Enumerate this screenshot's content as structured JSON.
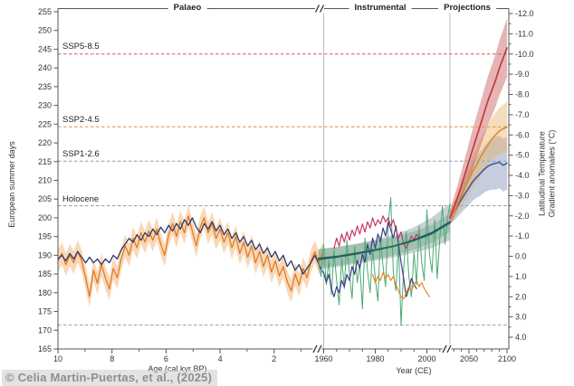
{
  "watermark": "© Celia Martin-Puertas, et al., (2025)",
  "chart_data": {
    "type": "line",
    "title": "",
    "panels": [
      {
        "id": "palaeo",
        "label": "Palaeo"
      },
      {
        "id": "instrumental",
        "label": "Instrumental"
      },
      {
        "id": "projections",
        "label": "Projections"
      }
    ],
    "axes": {
      "left": {
        "label": "European summer days",
        "min": 165,
        "max": 255,
        "step": 5
      },
      "right": {
        "label_line1": "Latitudinal Temperature",
        "label_line2": "Gradient anomalies (°C)",
        "min": -12.0,
        "max": 4.0,
        "step": 1.0,
        "minor_step": 0.5,
        "inverted": true
      },
      "x_palaeo": {
        "label": "Age (cal kyr BP)",
        "ticks": [
          10,
          8,
          6,
          4,
          2
        ],
        "minor": [
          9,
          7,
          5,
          3,
          1
        ]
      },
      "x_years": {
        "label": "Year (CE)",
        "instrumental_ticks": [
          1960,
          1980,
          2000
        ],
        "instrumental_minor": [
          1965,
          1970,
          1975,
          1985,
          1990,
          1995,
          2005
        ],
        "projection_ticks": [
          2050,
          2100
        ],
        "projection_minor": [
          2030,
          2040,
          2060,
          2070,
          2080,
          2090
        ]
      }
    },
    "ref_lines": [
      {
        "label": "SSP5-8.5",
        "ltg": -10.0,
        "days": 243.9,
        "color": "#d45560"
      },
      {
        "label": "SSP2-4.5",
        "ltg": -6.4,
        "days": 223.7,
        "color": "#dfa050"
      },
      {
        "label": "SSP1-2.6",
        "ltg": -4.7,
        "days": 214.4,
        "color": "#97a5b4"
      },
      {
        "label": "Holocene",
        "ltg": -2.5,
        "days": 203.0,
        "color": "#a5a5a5"
      },
      {
        "label": "",
        "ltg": 3.4,
        "days": 171.4,
        "color": "#a5a5a5"
      }
    ],
    "series": [
      {
        "id": "palaeo_orange_reconstruction",
        "panel": "palaeo",
        "units": "days",
        "x0": 10.0,
        "x1": 0.2,
        "color": "#e07b28",
        "width": 1.3,
        "band": {
          "color": "rgba(243,178,109,0.5)",
          "halfwidth": 3
        },
        "values": [
          188.5,
          190.5,
          187.5,
          190,
          188,
          191,
          188.5,
          184,
          179,
          186,
          182.5,
          187.5,
          184,
          181,
          186.5,
          184,
          189,
          192.5,
          190,
          194.5,
          192,
          196,
          193.5,
          196.5,
          194,
          197,
          193,
          190,
          195.5,
          198.5,
          195,
          199,
          196,
          200.5,
          196.5,
          192.5,
          197.5,
          200,
          196,
          198.5,
          194.5,
          197,
          193.5,
          196,
          192,
          195,
          190.5,
          193.5,
          189.5,
          192.5,
          188,
          191,
          187,
          190,
          185.5,
          188.5,
          184.5,
          187,
          183,
          180.5,
          185,
          182,
          186.5,
          184,
          188.5,
          191,
          188,
          190.5
        ]
      },
      {
        "id": "palaeo_navy_simulation",
        "panel": "palaeo",
        "units": "days",
        "x0": 10.0,
        "x1": 0.2,
        "color": "#2c3a72",
        "width": 1.3,
        "values": [
          189,
          190,
          188.5,
          190.5,
          189,
          191,
          189.5,
          188,
          189.5,
          188,
          189,
          187.5,
          189,
          188,
          190,
          189,
          191.5,
          193,
          194.5,
          193.5,
          195.5,
          194,
          196,
          195,
          197,
          195.5,
          197.5,
          196,
          198,
          196.5,
          198.5,
          197,
          199.5,
          198,
          200,
          197.5,
          196,
          198.5,
          197,
          199,
          196.5,
          198,
          195.5,
          197,
          194.5,
          196,
          193.5,
          195,
          192.5,
          194,
          191.5,
          193,
          190.5,
          192,
          189.5,
          191,
          188.5,
          190,
          187,
          188.5,
          186,
          187.5,
          185,
          186.5,
          188,
          190,
          187.5,
          185.5
        ]
      },
      {
        "id": "instr_annual_green",
        "panel": "instrumental",
        "units": "ltg",
        "x0": 1958,
        "x1": 2009,
        "color": "#4aa973",
        "width": 1,
        "values": [
          0.3,
          1.0,
          -0.6,
          1.4,
          0.2,
          1.9,
          -0.3,
          1.2,
          2.4,
          0.1,
          1.6,
          -0.8,
          0.9,
          2.1,
          -0.5,
          1.3,
          0.4,
          2.6,
          -0.9,
          0.7,
          1.8,
          -0.4,
          1.1,
          2.2,
          -1.0,
          0.5,
          1.5,
          -1.6,
          -2.9,
          0.8,
          1.7,
          -0.7,
          3.4,
          0.6,
          -1.2,
          1.0,
          2.0,
          -0.2,
          1.4,
          -1.5,
          0.3,
          1.2,
          -2.3,
          -0.1,
          0.8,
          -1.8,
          1.1,
          -0.9,
          -2.5,
          -0.6,
          -1.9,
          -2.6
        ]
      },
      {
        "id": "instr_purple",
        "panel": "instrumental",
        "units": "ltg",
        "x0": 1960,
        "x1": 1996,
        "color": "#3f3e87",
        "width": 1.2,
        "values": [
          0.8,
          1.3,
          0.9,
          1.6,
          2.0,
          1.5,
          1.8,
          1.2,
          1.5,
          0.9,
          1.2,
          0.5,
          0.9,
          0.2,
          0.6,
          -0.1,
          0.3,
          -0.6,
          -0.1,
          -0.9,
          -0.4,
          -1.1,
          -0.7,
          -1.4,
          -1.0,
          -1.7,
          -1.3,
          -0.9,
          -1.5,
          -0.6,
          0.3,
          1.1,
          2.0,
          1.6,
          1.1,
          1.4,
          1.6
        ]
      },
      {
        "id": "instr_crimson",
        "panel": "instrumental",
        "units": "ltg",
        "x0": 1964,
        "x1": 1997,
        "color": "#c53a63",
        "width": 1.2,
        "values": [
          -0.4,
          -0.9,
          -0.5,
          -1.1,
          -0.7,
          -1.2,
          -0.8,
          -1.3,
          -1.0,
          -1.5,
          -1.1,
          -1.6,
          -1.2,
          -1.7,
          -1.4,
          -1.9,
          -1.5,
          -1.8,
          -1.6,
          -2.0,
          -1.7,
          -1.9,
          -1.5,
          -1.8,
          -1.3,
          -0.9,
          -1.2,
          -0.6,
          -0.4,
          -0.7,
          -1.0,
          -0.8,
          -1.1,
          -0.9
        ]
      },
      {
        "id": "instr_orange",
        "panel": "instrumental",
        "units": "ltg",
        "x0": 1979,
        "x1": 2001,
        "color": "#e8891f",
        "width": 1.2,
        "values": [
          0.9,
          1.3,
          1.0,
          1.2,
          0.8,
          1.1,
          0.9,
          1.2,
          1.0,
          1.4,
          1.7,
          2.0,
          2.1,
          1.8,
          1.5,
          1.7,
          1.4,
          1.2,
          1.5,
          1.3,
          1.6,
          1.8,
          2.0
        ]
      },
      {
        "id": "instr_trend_navy",
        "panel": "instrumental",
        "units": "ltg",
        "x0": 1958,
        "x1": 2009,
        "color": "#24427f",
        "width": 1.6,
        "band": {
          "color": "rgba(140,150,162,0.45)",
          "halfwidth": [
            0.5,
            0.5,
            0.5,
            0.52,
            0.56,
            0.62,
            0.75,
            0.9
          ]
        },
        "values": [
          0.15,
          0.03,
          -0.12,
          -0.3,
          -0.5,
          -0.78,
          -1.15,
          -1.7
        ]
      },
      {
        "id": "instr_trend_green",
        "panel": "instrumental",
        "units": "ltg",
        "x0": 1958,
        "x1": 2009,
        "color": "#20714a",
        "width": 1.6,
        "band": {
          "color": "rgba(110,175,135,0.45)",
          "halfwidth": 0.45
        },
        "values": [
          0.1,
          0.0,
          -0.15,
          -0.32,
          -0.5,
          -0.75,
          -1.1,
          -1.65
        ]
      },
      {
        "id": "proj_ssp126_blue",
        "panel": "projections",
        "units": "ltg",
        "x0": 2025,
        "x1": 2100,
        "color": "#3e5c9e",
        "width": 1.6,
        "band": {
          "color": "rgba(110,130,175,0.4)",
          "halfwidth": [
            0.3,
            0.45,
            0.55,
            0.65,
            0.75,
            0.85,
            0.95,
            1.0,
            1.1,
            1.15,
            1.2,
            1.25,
            1.3,
            1.3,
            1.3,
            1.3
          ]
        },
        "values": [
          -1.9,
          -2.2,
          -2.5,
          -2.8,
          -3.1,
          -3.4,
          -3.7,
          -3.9,
          -4.1,
          -4.3,
          -4.45,
          -4.55,
          -4.6,
          -4.65,
          -4.5,
          -4.6
        ]
      },
      {
        "id": "proj_ssp245_orange",
        "panel": "projections",
        "units": "ltg",
        "x0": 2025,
        "x1": 2100,
        "color": "#e08a30",
        "width": 1.6,
        "band": {
          "color": "rgba(233,180,105,0.45)",
          "halfwidth": [
            0.3,
            0.4,
            0.5,
            0.6,
            0.7,
            0.75,
            0.8,
            0.85,
            0.9,
            0.95,
            1.0,
            1.05,
            1.1,
            1.15,
            1.2,
            1.25
          ]
        },
        "values": [
          -1.9,
          -2.2,
          -2.6,
          -3.0,
          -3.4,
          -3.8,
          -4.2,
          -4.5,
          -4.9,
          -5.2,
          -5.5,
          -5.8,
          -6.0,
          -6.2,
          -6.3,
          -6.4
        ]
      },
      {
        "id": "proj_ssp585_red",
        "panel": "projections",
        "units": "ltg",
        "x0": 2025,
        "x1": 2100,
        "color": "#c43240",
        "width": 1.6,
        "band": {
          "color": "rgba(196,90,85,0.45)",
          "halfwidth": [
            0.35,
            0.5,
            0.6,
            0.7,
            0.8,
            0.9,
            1.0,
            1.05,
            1.1,
            1.15,
            1.2,
            1.25,
            1.3,
            1.35,
            1.4,
            1.45
          ]
        },
        "values": [
          -1.9,
          -2.4,
          -2.9,
          -3.5,
          -4.1,
          -4.7,
          -5.3,
          -5.9,
          -6.5,
          -7.1,
          -7.7,
          -8.2,
          -8.7,
          -9.3,
          -9.8,
          -10.3
        ]
      }
    ]
  }
}
